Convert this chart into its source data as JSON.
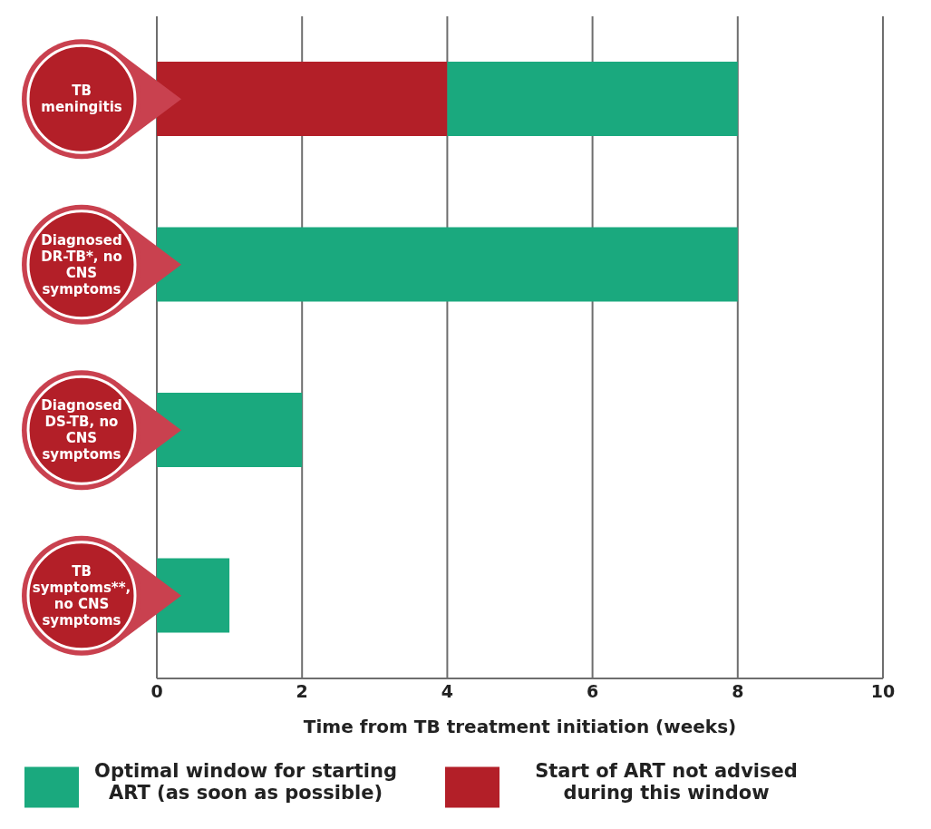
{
  "chart_data": {
    "type": "bar",
    "orientation": "horizontal",
    "stacked": true,
    "categories": [
      "TB meningitis",
      "Diagnosed DR-TB*, no CNS symptoms",
      "Diagnosed DS-TB, no CNS symptoms",
      "TB symptoms**, no CNS symptoms"
    ],
    "series": [
      {
        "name": "Start of ART not advised during this window",
        "color": "#b31f28",
        "values": [
          4,
          0,
          0,
          0
        ]
      },
      {
        "name": "Optimal window for starting ART (as soon as possible)",
        "color": "#1aa97e",
        "values": [
          4,
          8,
          2,
          1
        ]
      }
    ],
    "xlabel": "Time from TB treatment initiation (weeks)",
    "xlim": [
      0,
      10
    ],
    "xticks": [
      0,
      2,
      4,
      6,
      8,
      10
    ],
    "grid": "x",
    "legend": "bottom"
  }
}
